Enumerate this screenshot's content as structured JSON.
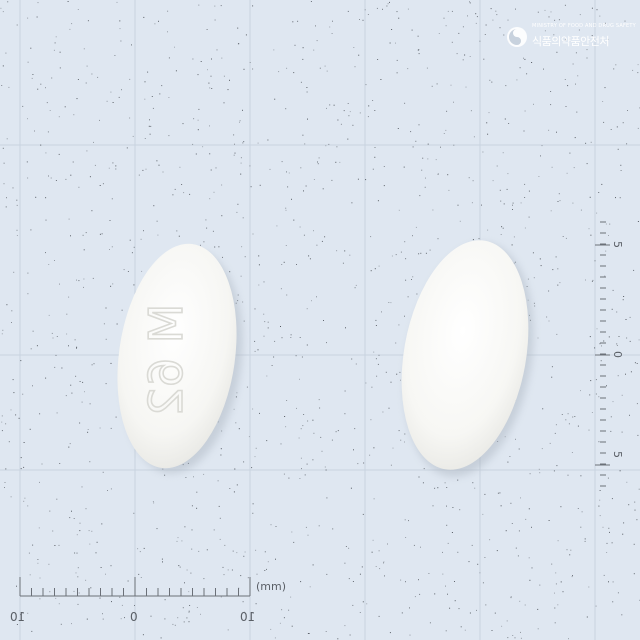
{
  "logo": {
    "line1": "MINISTRY OF FOOD AND DRUG SAFETY",
    "line2": "식품의약품안전처"
  },
  "ruler": {
    "unit": "(mm)",
    "labels": [
      "10",
      "0",
      "10"
    ]
  },
  "vruler": {
    "labels": [
      "5",
      "0",
      "5"
    ]
  },
  "tablets": [
    {
      "name": "tablet-left",
      "imprint": "M 62"
    },
    {
      "name": "tablet-right",
      "imprint": ""
    }
  ],
  "colors": {
    "background": "#dfe7f1",
    "grid": "#c9d3df",
    "tablet": "#f8f8f6",
    "ruler": "#6b7078"
  }
}
